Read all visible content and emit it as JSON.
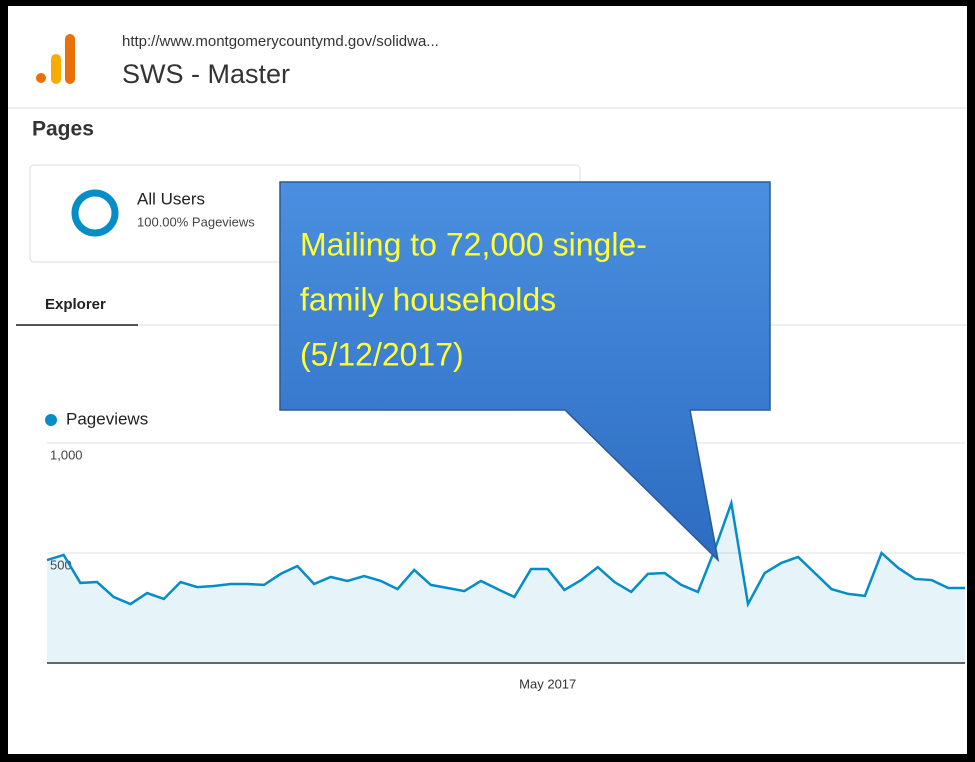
{
  "header": {
    "url": "http://www.montgomerycountymd.gov/solidwa...",
    "title": "SWS - Master"
  },
  "section": "Pages",
  "segment": {
    "name": "All Users",
    "detail": "100.00% Pageviews"
  },
  "tab": "Explorer",
  "callout": [
    "Mailing to 72,000 single-",
    "family households",
    "(5/12/2017)"
  ],
  "chart_data": {
    "type": "line",
    "categories": [
      null,
      null,
      null,
      null,
      null,
      null,
      null,
      null,
      null,
      null,
      null,
      null,
      null,
      null,
      null,
      null,
      null,
      null,
      null,
      null,
      null,
      null,
      null,
      null,
      null,
      null,
      null,
      null,
      null,
      null,
      "May 2017",
      null,
      null,
      null,
      null,
      null,
      null,
      null,
      null,
      null,
      null,
      null,
      null,
      null,
      null,
      null,
      null,
      null,
      null,
      null,
      null,
      null,
      null,
      null,
      null,
      null
    ],
    "series": [
      {
        "name": "Pageviews",
        "color": "#058dc7",
        "values": [
          468,
          491,
          364,
          368,
          300,
          268,
          318,
          291,
          368,
          345,
          350,
          359,
          359,
          355,
          405,
          441,
          359,
          391,
          373,
          395,
          373,
          336,
          423,
          355,
          341,
          327,
          373,
          336,
          300,
          427,
          427,
          332,
          377,
          436,
          368,
          323,
          405,
          409,
          355,
          323,
          514,
          727,
          268,
          409,
          455,
          482,
          409,
          336,
          314,
          305,
          500,
          432,
          382,
          377,
          341,
          341
        ]
      }
    ],
    "ylim": [
      0,
      1000
    ],
    "yticks": [
      0,
      500,
      {
        "value": 1000,
        "label": "1,000"
      }
    ],
    "grid": true
  }
}
